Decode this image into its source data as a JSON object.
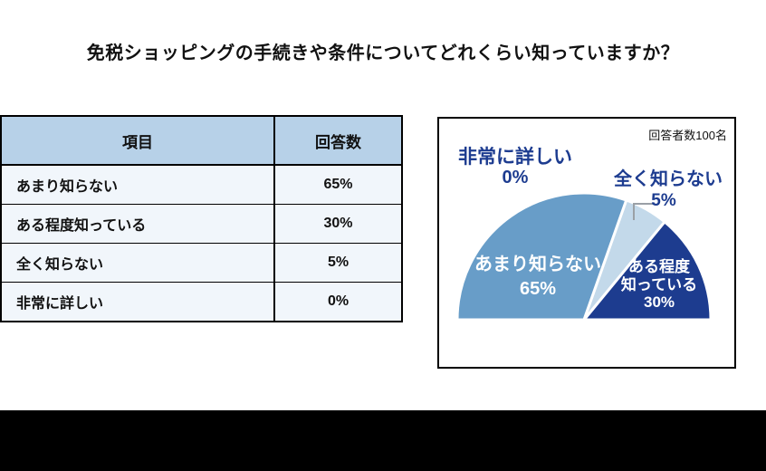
{
  "page": {
    "title": "免税ショッピングの手続きや条件についてどれくらい知っていますか？",
    "background": "#ffffff",
    "footer_bar_color": "#000000"
  },
  "table": {
    "headers": [
      "項目",
      "回答数"
    ],
    "rows": [
      {
        "item": "あまり知らない",
        "value": "65%"
      },
      {
        "item": "ある程度知っている",
        "value": "30%"
      },
      {
        "item": "全く知らない",
        "value": "5%"
      },
      {
        "item": "非常に詳しい",
        "value": "0%"
      }
    ],
    "header_bg": "#b7d1e8",
    "row_bg": "#f1f6fb",
    "border_color": "#000000"
  },
  "chart_data": {
    "type": "pie",
    "variant": "semicircle",
    "annotation": "回答者数100名",
    "label_color": "#1d3c90",
    "legend": "none",
    "slices": [
      {
        "label": "あまり知らない",
        "value": 65,
        "value_text": "65%",
        "color": "#689dc8",
        "text_color": "#ffffff",
        "label_placement": "inside"
      },
      {
        "label": "全く知らない",
        "value": 5,
        "value_text": "5%",
        "color": "#c3d9ea",
        "text_color": "#1d3c90",
        "label_placement": "outside"
      },
      {
        "label": "ある程度知っている",
        "value": 30,
        "value_text": "30%",
        "color": "#1d3c8f",
        "text_color": "#ffffff",
        "label_placement": "inside",
        "label_lines": [
          "ある程度",
          "知っている"
        ]
      },
      {
        "label": "非常に詳しい",
        "value": 0,
        "value_text": "0%",
        "color": null,
        "text_color": "#1d3c90",
        "label_placement": "outside"
      }
    ]
  }
}
